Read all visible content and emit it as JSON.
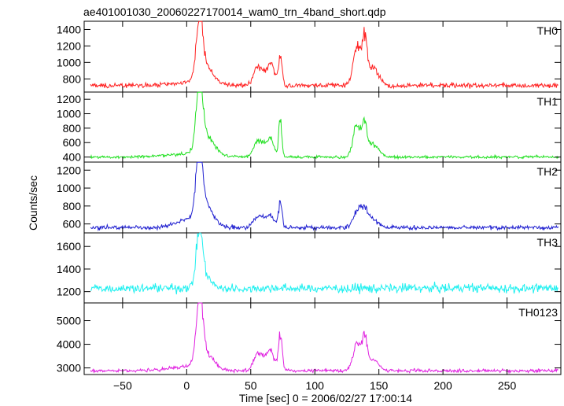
{
  "chart_data": {
    "type": "line",
    "title": "ae401001030_20060227170014_wam0_trn_4band_short.qdp",
    "xlabel": "Time [sec] 0 = 2006/02/27 17:00:14",
    "ylabel": "Counts/sec",
    "xlim": [
      -80,
      292
    ],
    "x_ticks": [
      "−50",
      "0",
      "50",
      "100",
      "150",
      "200",
      "250"
    ],
    "x_tick_values": [
      -50,
      0,
      50,
      100,
      150,
      200,
      250
    ],
    "grid": false,
    "panels": [
      {
        "label": "TH0",
        "color": "#ff2020",
        "ylim": [
          640,
          1500
        ],
        "y_ticks": [
          "800",
          "1000",
          "1200",
          "1400"
        ],
        "y_tick_values": [
          800,
          1000,
          1200,
          1400
        ],
        "baseline": 720,
        "noise": 28,
        "features": [
          [
            2,
            30,
            18
          ],
          [
            10,
            680,
            2.5
          ],
          [
            15,
            200,
            6
          ],
          [
            55,
            200,
            3
          ],
          [
            61,
            130,
            3
          ],
          [
            66,
            240,
            2.5
          ],
          [
            73,
            350,
            1.5
          ],
          [
            133,
            460,
            3
          ],
          [
            139,
            540,
            2
          ],
          [
            146,
            200,
            4
          ]
        ]
      },
      {
        "label": "TH1",
        "color": "#20e020",
        "ylim": [
          330,
          1300
        ],
        "y_ticks": [
          "400",
          "600",
          "800",
          "1000",
          "1200"
        ],
        "y_tick_values": [
          400,
          600,
          800,
          1000,
          1200
        ],
        "baseline": 400,
        "noise": 20,
        "features": [
          [
            2,
            40,
            18
          ],
          [
            10,
            860,
            2.5
          ],
          [
            15,
            260,
            6
          ],
          [
            55,
            200,
            3
          ],
          [
            61,
            150,
            3
          ],
          [
            66,
            220,
            2.5
          ],
          [
            73,
            520,
            1.2
          ],
          [
            133,
            450,
            3
          ],
          [
            139,
            400,
            2
          ],
          [
            146,
            180,
            4
          ]
        ]
      },
      {
        "label": "TH2",
        "color": "#2020d0",
        "ylim": [
          500,
          1290
        ],
        "y_ticks": [
          "600",
          "800",
          "1000",
          "1200"
        ],
        "y_tick_values": [
          600,
          800,
          1000,
          1200
        ],
        "baseline": 560,
        "noise": 22,
        "features": [
          [
            2,
            90,
            10
          ],
          [
            10,
            720,
            2.5
          ],
          [
            15,
            200,
            6
          ],
          [
            55,
            120,
            3
          ],
          [
            61,
            90,
            3
          ],
          [
            66,
            100,
            2.5
          ],
          [
            73,
            270,
            1.5
          ],
          [
            133,
            180,
            3
          ],
          [
            139,
            190,
            3
          ],
          [
            146,
            80,
            4
          ]
        ]
      },
      {
        "label": "TH3",
        "color": "#20f0f0",
        "ylim": [
          1100,
          1720
        ],
        "y_ticks": [
          "1200",
          "1400",
          "1600"
        ],
        "y_tick_values": [
          1200,
          1400,
          1600
        ],
        "baseline": 1230,
        "noise": 40,
        "features": [
          [
            10,
            450,
            2.5
          ],
          [
            14,
            100,
            5
          ]
        ]
      },
      {
        "label": "TH0123",
        "color": "#e020e0",
        "ylim": [
          2720,
          5750
        ],
        "y_ticks": [
          "3000",
          "4000",
          "5000"
        ],
        "y_tick_values": [
          3000,
          4000,
          5000
        ],
        "baseline": 2880,
        "noise": 70,
        "features": [
          [
            2,
            180,
            15
          ],
          [
            10,
            2700,
            2.5
          ],
          [
            15,
            600,
            6
          ],
          [
            55,
            650,
            3
          ],
          [
            61,
            450,
            3
          ],
          [
            66,
            700,
            2.5
          ],
          [
            73,
            1500,
            1.5
          ],
          [
            133,
            1200,
            3
          ],
          [
            139,
            1300,
            2
          ],
          [
            146,
            450,
            4
          ]
        ]
      }
    ]
  }
}
